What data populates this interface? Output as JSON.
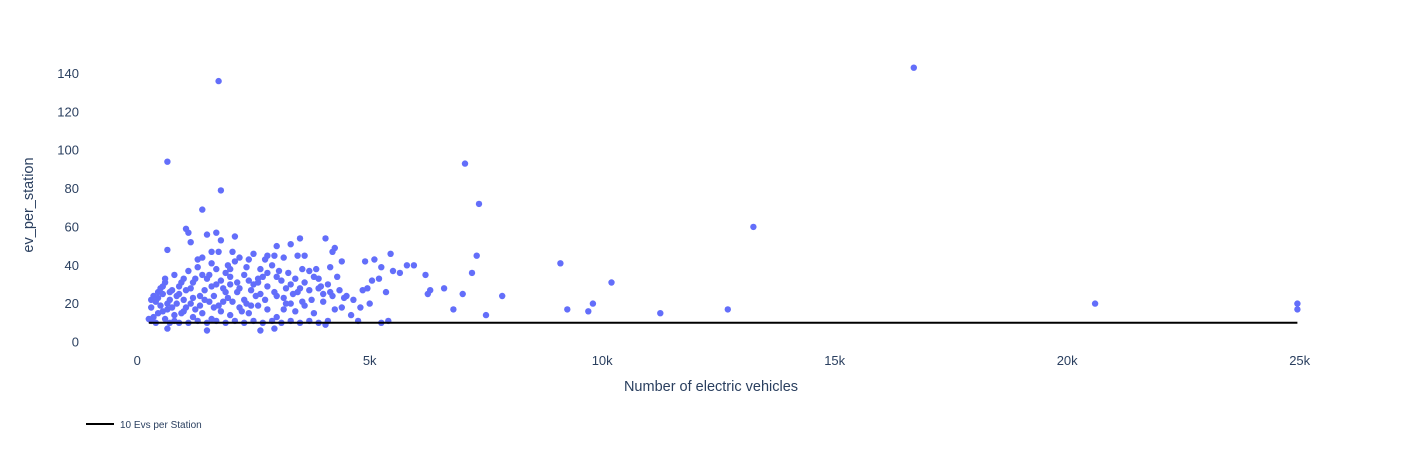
{
  "chart_data": {
    "type": "scatter",
    "title": "",
    "xlabel": "Number of electric vehicles",
    "ylabel": "ev_per_station",
    "xlim": [
      -800,
      25500
    ],
    "ylim": [
      0,
      147
    ],
    "grid": false,
    "legend_placement": "bottom-left",
    "x_ticks": [
      {
        "value": 0,
        "label": "0"
      },
      {
        "value": 5000,
        "label": "5k"
      },
      {
        "value": 10000,
        "label": "10k"
      },
      {
        "value": 15000,
        "label": "15k"
      },
      {
        "value": 20000,
        "label": "20k"
      },
      {
        "value": 25000,
        "label": "25k"
      }
    ],
    "y_ticks": [
      {
        "value": 0,
        "label": "0"
      },
      {
        "value": 20,
        "label": "20"
      },
      {
        "value": 40,
        "label": "40"
      },
      {
        "value": 60,
        "label": "60"
      },
      {
        "value": 80,
        "label": "80"
      },
      {
        "value": 100,
        "label": "100"
      },
      {
        "value": 120,
        "label": "120"
      },
      {
        "value": 140,
        "label": "140"
      }
    ],
    "colors": {
      "points": "#636efa",
      "reference_line": "#000000",
      "text": "#2a3f5f"
    },
    "points": [
      [
        16700,
        143
      ],
      [
        1750,
        136
      ],
      [
        650,
        94
      ],
      [
        7050,
        93
      ],
      [
        1800,
        79
      ],
      [
        7350,
        72
      ],
      [
        1400,
        69
      ],
      [
        13250,
        60
      ],
      [
        1050,
        59
      ],
      [
        1100,
        57
      ],
      [
        1700,
        57
      ],
      [
        1500,
        56
      ],
      [
        2100,
        55
      ],
      [
        3500,
        54
      ],
      [
        4050,
        54
      ],
      [
        1800,
        53
      ],
      [
        1150,
        52
      ],
      [
        3000,
        50
      ],
      [
        3300,
        51
      ],
      [
        4250,
        49
      ],
      [
        4200,
        47
      ],
      [
        5450,
        46
      ],
      [
        650,
        48
      ],
      [
        1750,
        47
      ],
      [
        2500,
        46
      ],
      [
        2950,
        45
      ],
      [
        3450,
        45
      ],
      [
        3600,
        45
      ],
      [
        7300,
        45
      ],
      [
        1400,
        44
      ],
      [
        2200,
        44
      ],
      [
        2750,
        43
      ],
      [
        3150,
        44
      ],
      [
        4400,
        42
      ],
      [
        4900,
        42
      ],
      [
        5100,
        43
      ],
      [
        5800,
        40
      ],
      [
        9100,
        41
      ],
      [
        5250,
        39
      ],
      [
        5950,
        40
      ],
      [
        6200,
        35
      ],
      [
        6600,
        28
      ],
      [
        7000,
        25
      ],
      [
        7200,
        36
      ],
      [
        1300,
        43
      ],
      [
        1600,
        41
      ],
      [
        1950,
        40
      ],
      [
        2350,
        39
      ],
      [
        2650,
        38
      ],
      [
        3050,
        37
      ],
      [
        3250,
        36
      ],
      [
        3850,
        38
      ],
      [
        4150,
        39
      ],
      [
        5500,
        37
      ],
      [
        5650,
        36
      ],
      [
        7850,
        24
      ],
      [
        10200,
        31
      ],
      [
        6300,
        27
      ],
      [
        6250,
        25
      ],
      [
        6800,
        17
      ],
      [
        7500,
        14
      ],
      [
        9250,
        17
      ],
      [
        9800,
        20
      ],
      [
        9700,
        16
      ],
      [
        11250,
        15
      ],
      [
        12700,
        17
      ],
      [
        20600,
        20
      ],
      [
        24950,
        20
      ],
      [
        24950,
        17
      ],
      [
        5250,
        10
      ],
      [
        5400,
        11
      ],
      [
        4050,
        9
      ],
      [
        4750,
        11
      ],
      [
        2650,
        6
      ],
      [
        2950,
        7
      ],
      [
        1500,
        6
      ],
      [
        650,
        7
      ],
      [
        5350,
        26
      ],
      [
        4650,
        22
      ],
      [
        4800,
        18
      ],
      [
        5050,
        32
      ],
      [
        4950,
        28
      ],
      [
        4450,
        23
      ],
      [
        4250,
        17
      ],
      [
        4000,
        25
      ],
      [
        3900,
        28
      ],
      [
        3750,
        22
      ],
      [
        3600,
        31
      ],
      [
        3450,
        26
      ],
      [
        3300,
        20
      ],
      [
        3150,
        17
      ],
      [
        3000,
        24
      ],
      [
        2800,
        29
      ],
      [
        2600,
        33
      ],
      [
        2450,
        27
      ],
      [
        2300,
        22
      ],
      [
        2150,
        31
      ],
      [
        2000,
        34
      ],
      [
        1900,
        26
      ],
      [
        1850,
        21
      ],
      [
        1700,
        30
      ],
      [
        1650,
        24
      ],
      [
        1550,
        35
      ],
      [
        1450,
        27
      ],
      [
        1350,
        19
      ],
      [
        1250,
        33
      ],
      [
        1200,
        23
      ],
      [
        1150,
        28
      ],
      [
        1050,
        18
      ],
      [
        950,
        31
      ],
      [
        900,
        25
      ],
      [
        850,
        20
      ],
      [
        800,
        14
      ],
      [
        750,
        27
      ],
      [
        700,
        22
      ],
      [
        650,
        17
      ],
      [
        600,
        31
      ],
      [
        550,
        25
      ],
      [
        500,
        19
      ],
      [
        450,
        15
      ],
      [
        400,
        21
      ],
      [
        350,
        13
      ],
      [
        300,
        18
      ],
      [
        250,
        12
      ],
      [
        600,
        12
      ],
      [
        800,
        11
      ],
      [
        1000,
        16
      ],
      [
        1200,
        13
      ],
      [
        1400,
        15
      ],
      [
        1600,
        12
      ],
      [
        1800,
        16
      ],
      [
        2000,
        14
      ],
      [
        2200,
        18
      ],
      [
        2400,
        15
      ],
      [
        2600,
        19
      ],
      [
        2800,
        17
      ],
      [
        3000,
        13
      ],
      [
        3200,
        20
      ],
      [
        3400,
        16
      ],
      [
        3600,
        19
      ],
      [
        3800,
        15
      ],
      [
        4000,
        21
      ],
      [
        4200,
        24
      ],
      [
        4400,
        18
      ],
      [
        4600,
        14
      ],
      [
        1100,
        37
      ],
      [
        1300,
        39
      ],
      [
        1500,
        33
      ],
      [
        1700,
        38
      ],
      [
        1900,
        36
      ],
      [
        2100,
        42
      ],
      [
        2300,
        35
      ],
      [
        2500,
        30
      ],
      [
        2700,
        34
      ],
      [
        2900,
        40
      ],
      [
        3100,
        32
      ],
      [
        3300,
        30
      ],
      [
        3500,
        28
      ],
      [
        3700,
        27
      ],
      [
        3900,
        33
      ],
      [
        700,
        26
      ],
      [
        900,
        29
      ],
      [
        1000,
        22
      ],
      [
        1150,
        20
      ],
      [
        1350,
        24
      ],
      [
        1550,
        21
      ],
      [
        1750,
        19
      ],
      [
        1950,
        23
      ],
      [
        2150,
        26
      ],
      [
        2350,
        20
      ],
      [
        2550,
        24
      ],
      [
        2750,
        22
      ],
      [
        2950,
        26
      ],
      [
        3150,
        23
      ],
      [
        3350,
        25
      ],
      [
        3550,
        21
      ],
      [
        500,
        28
      ],
      [
        450,
        23
      ],
      [
        550,
        16
      ],
      [
        650,
        20
      ],
      [
        750,
        18
      ],
      [
        850,
        24
      ],
      [
        950,
        15
      ],
      [
        1050,
        27
      ],
      [
        1250,
        17
      ],
      [
        1450,
        22
      ],
      [
        1650,
        18
      ],
      [
        1850,
        28
      ],
      [
        2050,
        21
      ],
      [
        2250,
        16
      ],
      [
        2450,
        19
      ],
      [
        2650,
        25
      ],
      [
        1600,
        47
      ],
      [
        2050,
        47
      ],
      [
        2400,
        43
      ],
      [
        2800,
        45
      ],
      [
        3550,
        38
      ],
      [
        3700,
        37
      ],
      [
        3800,
        34
      ],
      [
        4300,
        34
      ],
      [
        4100,
        30
      ],
      [
        3950,
        29
      ],
      [
        4150,
        26
      ],
      [
        4350,
        27
      ],
      [
        4500,
        24
      ],
      [
        5000,
        20
      ],
      [
        4850,
        27
      ],
      [
        5200,
        33
      ],
      [
        400,
        10
      ],
      [
        300,
        11
      ],
      [
        700,
        10
      ],
      [
        900,
        10
      ],
      [
        1100,
        10
      ],
      [
        1300,
        11
      ],
      [
        1500,
        10
      ],
      [
        1700,
        11
      ],
      [
        1900,
        10
      ],
      [
        2100,
        11
      ],
      [
        2300,
        10
      ],
      [
        2500,
        11
      ],
      [
        2700,
        10
      ],
      [
        2900,
        11
      ],
      [
        3100,
        10
      ],
      [
        3300,
        11
      ],
      [
        3500,
        10
      ],
      [
        3700,
        11
      ],
      [
        3900,
        10
      ],
      [
        4100,
        11
      ],
      [
        2000,
        30
      ],
      [
        2200,
        28
      ],
      [
        2400,
        32
      ],
      [
        2600,
        31
      ],
      [
        2800,
        36
      ],
      [
        3000,
        34
      ],
      [
        3200,
        28
      ],
      [
        3400,
        33
      ],
      [
        1000,
        33
      ],
      [
        1200,
        31
      ],
      [
        1400,
        35
      ],
      [
        1600,
        29
      ],
      [
        1800,
        32
      ],
      [
        2000,
        38
      ],
      [
        800,
        35
      ],
      [
        600,
        33
      ],
      [
        550,
        29
      ],
      [
        450,
        26
      ],
      [
        350,
        24
      ],
      [
        300,
        22
      ]
    ],
    "series": [
      {
        "name": "10 Evs per Station",
        "type": "line",
        "x": [
          250,
          24950
        ],
        "y": [
          10,
          10
        ]
      }
    ]
  }
}
